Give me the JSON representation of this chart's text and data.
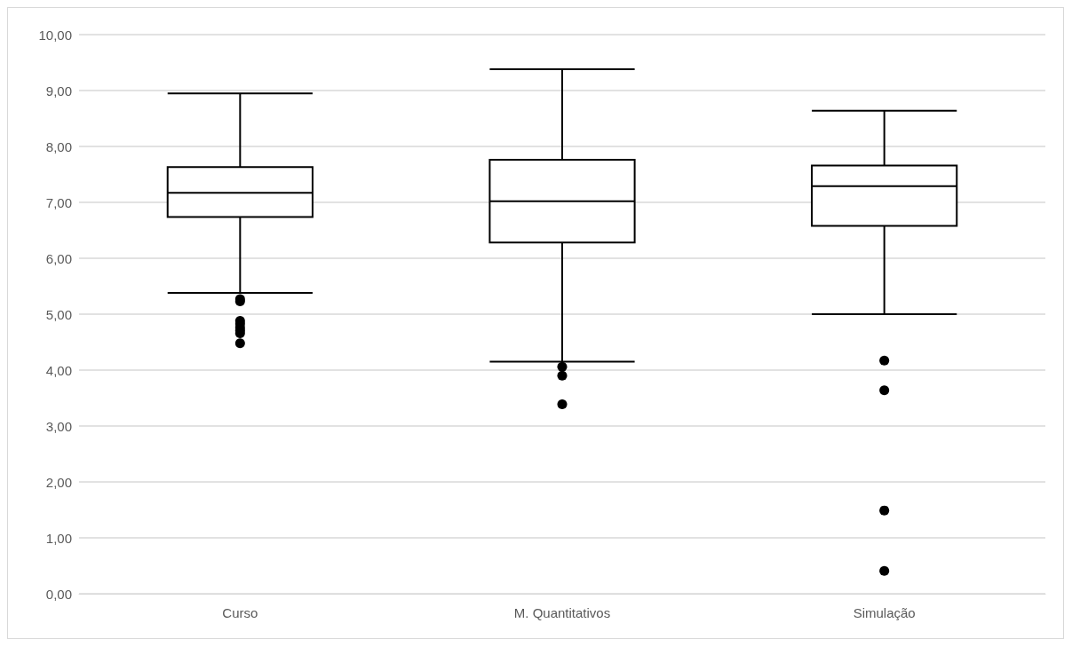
{
  "chart_data": {
    "type": "box",
    "categories": [
      "Curso",
      "M. Quantitativos",
      "Simulação"
    ],
    "boxes": [
      {
        "low": 5.38,
        "q1": 6.74,
        "median": 7.17,
        "q3": 7.63,
        "high": 8.95,
        "outliers": [
          5.27,
          5.23,
          4.88,
          4.83,
          4.76,
          4.71,
          4.66,
          4.48
        ]
      },
      {
        "low": 4.15,
        "q1": 6.28,
        "median": 7.02,
        "q3": 7.76,
        "high": 9.38,
        "outliers": [
          4.06,
          3.9,
          3.39
        ]
      },
      {
        "low": 5.0,
        "q1": 6.58,
        "median": 7.29,
        "q3": 7.66,
        "high": 8.64,
        "outliers": [
          4.17,
          3.64,
          1.49,
          0.41
        ]
      }
    ],
    "color": "#000000",
    "ylim": [
      0,
      10
    ],
    "yticks": [
      {
        "value": 0,
        "label": "0,00"
      },
      {
        "value": 1,
        "label": "1,00"
      },
      {
        "value": 2,
        "label": "2,00"
      },
      {
        "value": 3,
        "label": "3,00"
      },
      {
        "value": 4,
        "label": "4,00"
      },
      {
        "value": 5,
        "label": "5,00"
      },
      {
        "value": 6,
        "label": "6,00"
      },
      {
        "value": 7,
        "label": "7,00"
      },
      {
        "value": 8,
        "label": "8,00"
      },
      {
        "value": 9,
        "label": "9,00"
      },
      {
        "value": 10,
        "label": "10,00"
      }
    ],
    "grid": "y"
  }
}
